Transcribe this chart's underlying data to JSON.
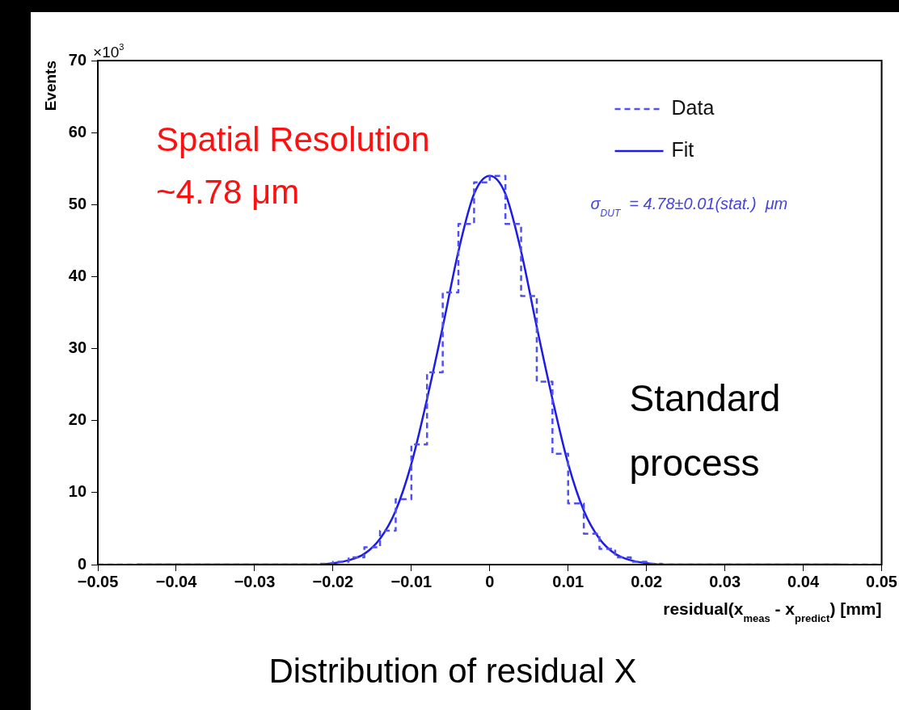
{
  "chart_data": {
    "type": "histogram",
    "title": "Distribution of residual X",
    "xlabel": "residual(x$_{meas}$ - x$_{predict}$) [mm]",
    "ylabel": "Events",
    "annotations": [
      "×10$^{3}$",
      "Spatial Resolution\n~4.78 μm",
      "σ$_{DUT}$  = 4.78±0.01(stat.)  μm",
      "Standard\nprocess"
    ],
    "bins": [
      -0.05,
      -0.048,
      -0.046,
      -0.044,
      -0.042,
      -0.04,
      -0.038,
      -0.036,
      -0.034,
      -0.032,
      -0.03,
      -0.028,
      -0.026,
      -0.024,
      -0.022,
      -0.02,
      -0.018,
      -0.016,
      -0.014,
      -0.012,
      -0.01,
      -0.008,
      -0.006,
      -0.004,
      -0.002,
      0,
      0.002,
      0.004,
      0.006,
      0.008,
      0.01,
      0.012,
      0.014,
      0.016,
      0.018,
      0.02,
      0.022,
      0.024,
      0.026,
      0.028,
      0.03,
      0.032,
      0.034,
      0.036,
      0.038,
      0.04,
      0.042,
      0.044,
      0.046,
      0.048,
      0.05
    ],
    "series": [
      {
        "name": "Data",
        "color": "#5050f0",
        "line_style": "dashed",
        "values": [
          0,
          0,
          0,
          0,
          0,
          0,
          0,
          0,
          0,
          0,
          0,
          0,
          0,
          0,
          0.1,
          0.4,
          1.0,
          2.4,
          4.7,
          9.1,
          16.7,
          26.7,
          37.8,
          47.3,
          53.1,
          54.0,
          47.3,
          37.3,
          25.4,
          15.4,
          8.5,
          4.3,
          2.2,
          1.0,
          0.4,
          0.1,
          0,
          0,
          0,
          0,
          0,
          0,
          0,
          0,
          0,
          0,
          0,
          0,
          0,
          0
        ]
      },
      {
        "name": "Fit",
        "type": "line",
        "color": "#1c1ce6",
        "line_style": "solid",
        "x": [
          -0.045,
          -0.03,
          -0.022,
          -0.02,
          -0.018,
          -0.016,
          -0.014,
          -0.012,
          -0.01,
          -0.008,
          -0.006,
          -0.004,
          -0.002,
          0,
          0.002,
          0.004,
          0.006,
          0.008,
          0.01,
          0.012,
          0.014,
          0.016,
          0.018,
          0.02,
          0.022,
          0.03,
          0.045
        ],
        "values": [
          0,
          0,
          0,
          0.2,
          0.6,
          1.5,
          3.6,
          7.5,
          14,
          23,
          33,
          43.5,
          51.5,
          54,
          51.5,
          43.5,
          33,
          23,
          14,
          7.5,
          3.6,
          1.5,
          0.6,
          0.2,
          0,
          0,
          0
        ]
      }
    ],
    "xlim": [
      -0.05,
      0.05
    ],
    "xticks": [
      {
        "value": -0.05,
        "label": "−0.05"
      },
      {
        "value": -0.04,
        "label": "−0.04"
      },
      {
        "value": -0.03,
        "label": "−0.03"
      },
      {
        "value": -0.02,
        "label": "−0.02"
      },
      {
        "value": -0.01,
        "label": "−0.01"
      },
      0,
      0.01,
      0.02,
      0.03,
      0.04,
      0.05
    ],
    "ylim": [
      0,
      70
    ],
    "yticks": [
      0,
      10,
      20,
      30,
      40,
      50,
      60,
      70
    ],
    "grid": false,
    "legend": "top right"
  }
}
